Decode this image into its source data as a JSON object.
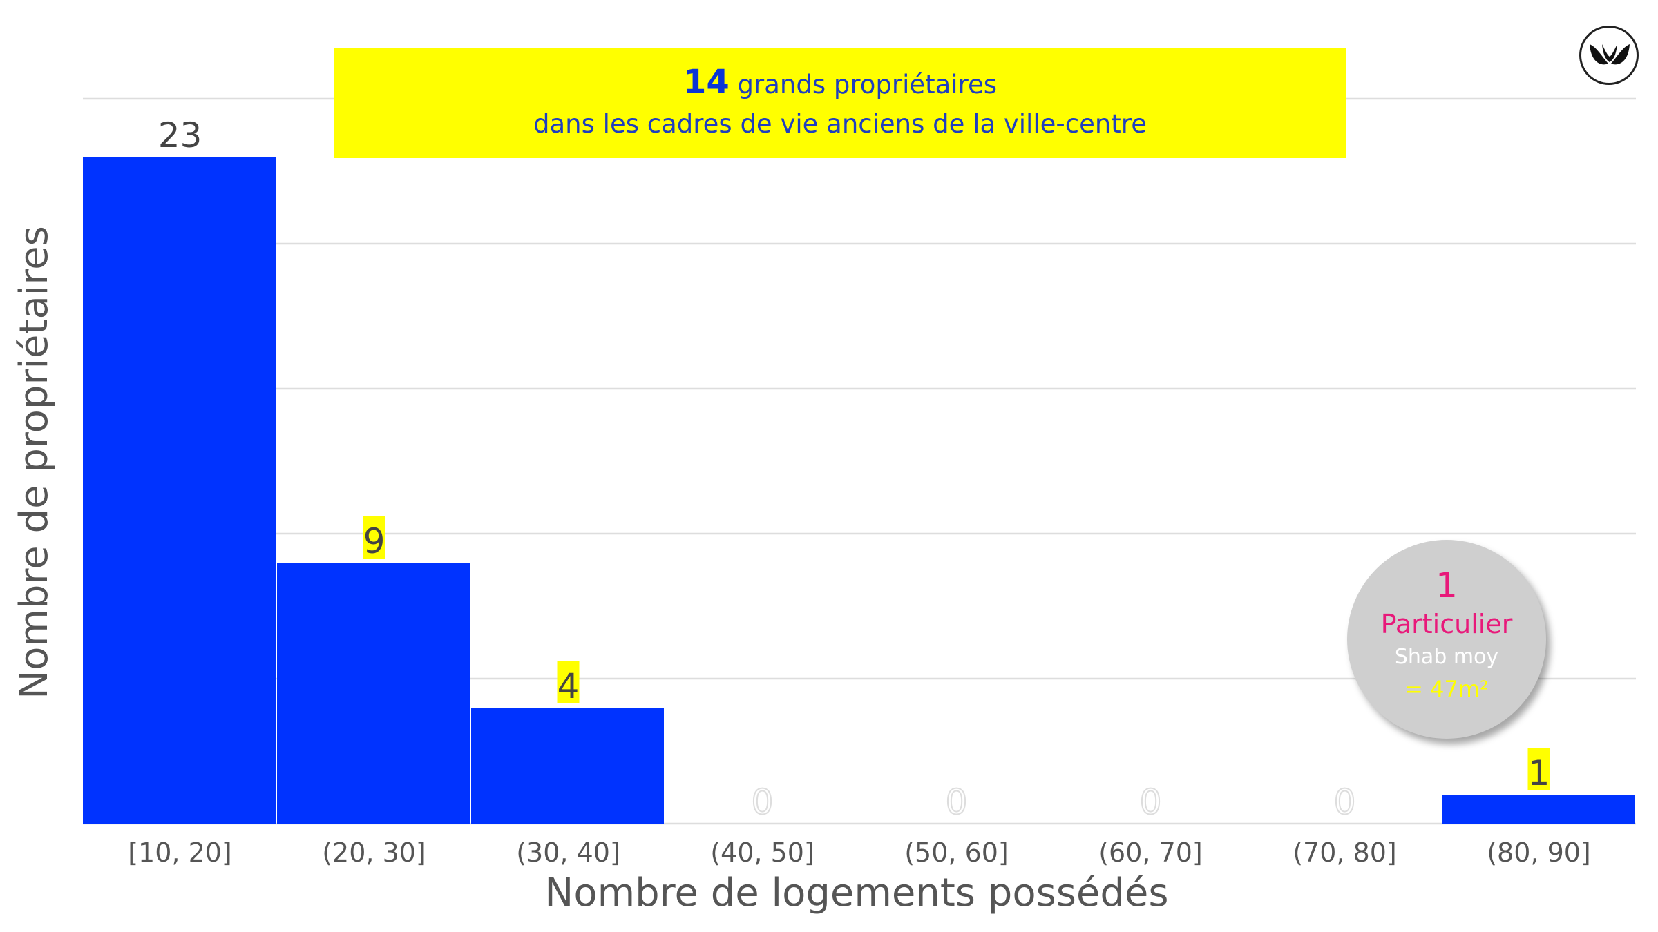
{
  "banner": {
    "count": "14",
    "line1": "grands propriétaires",
    "line2": "dans les cadres de vie anciens de la ville-centre"
  },
  "callout": {
    "count": "1",
    "type": "Particulier",
    "metric": "Shab moy",
    "value": "= 47m²"
  },
  "logo": {
    "icon": "two-leaves-logo-icon"
  },
  "colors": {
    "bar": "#0033ff",
    "label_highlight": "#ffff00",
    "callout_accent": "#e8197a",
    "grid": "#dddddd"
  },
  "chart_data": {
    "type": "bar",
    "categories": [
      "[10, 20]",
      "(20, 30]",
      "(30, 40]",
      "(40, 50]",
      "(50, 60]",
      "(60, 70]",
      "(70, 80]",
      "(80, 90]"
    ],
    "values": [
      23,
      9,
      4,
      0,
      0,
      0,
      0,
      1
    ],
    "value_labels": [
      "23",
      "9",
      "4",
      "0",
      "0",
      "0",
      "0",
      "1"
    ],
    "highlighted_labels": [
      false,
      true,
      true,
      false,
      false,
      false,
      false,
      true
    ],
    "title": "",
    "xlabel": "Nombre de logements possédés",
    "ylabel": "Nombre de propriétaires",
    "ylim": [
      0,
      25
    ],
    "grid": true,
    "legend": "none"
  }
}
